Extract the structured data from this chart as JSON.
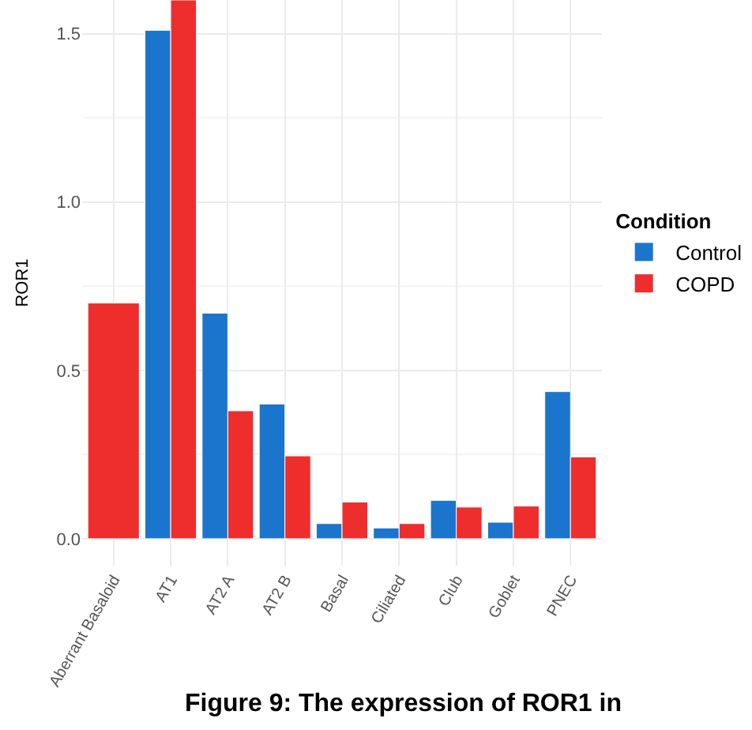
{
  "chart_data": {
    "type": "bar",
    "ylabel": "ROR1",
    "legend_title": "Condition",
    "categories": [
      "Aberrant Basaloid",
      "AT1",
      "AT2 A",
      "AT2 B",
      "Basal",
      "Ciliated",
      "Club",
      "Goblet",
      "PNEC"
    ],
    "series": [
      {
        "name": "Control",
        "color": "#1b75cc",
        "values": [
          null,
          1.51,
          0.67,
          0.4,
          0.045,
          0.032,
          0.114,
          0.049,
          0.437
        ]
      },
      {
        "name": "COPD",
        "color": "#ee2d2d",
        "values": [
          0.7,
          1.6,
          0.38,
          0.246,
          0.109,
          0.045,
          0.094,
          0.097,
          0.243
        ]
      }
    ],
    "ylim": [
      -0.08,
      1.6
    ],
    "yticks": [
      {
        "value": 0,
        "label": "0.0"
      },
      0.5,
      {
        "value": 1,
        "label": "1.0"
      },
      1.5
    ],
    "grid": true,
    "legend": "right",
    "annotations": [
      "Figure 9: The expression of ROR1 in"
    ]
  }
}
